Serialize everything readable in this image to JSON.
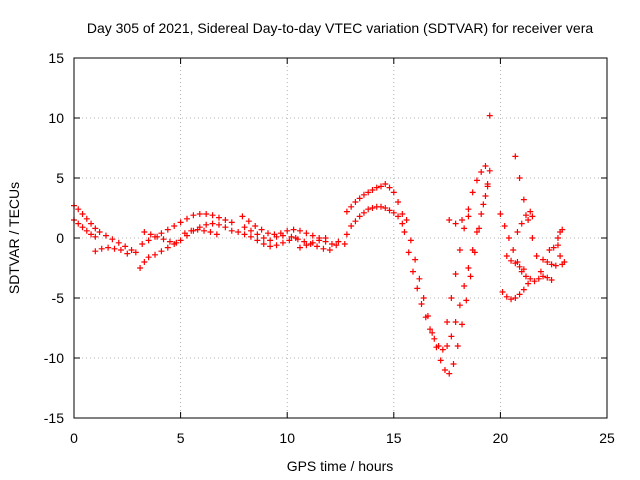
{
  "chart_data": {
    "type": "scatter",
    "title": "Day 305 of 2021, Sidereal Day-to-day VTEC variation (SDTVAR) for receiver vera",
    "xlabel": "GPS time / hours",
    "ylabel": "SDTVAR / TECUs",
    "xlim": [
      0,
      25
    ],
    "ylim": [
      -15,
      15
    ],
    "xticks": [
      "0",
      "5",
      "10",
      "15",
      "20",
      "25"
    ],
    "yticks": [
      "15",
      "10",
      "5",
      "0",
      "-5",
      "-10",
      "-15"
    ],
    "grid": true,
    "marker": "plus",
    "color": "#ff0000",
    "series": [
      {
        "points": [
          [
            0.0,
            2.7
          ],
          [
            0.2,
            2.4
          ],
          [
            0.4,
            2.0
          ],
          [
            0.6,
            1.6
          ],
          [
            0.8,
            1.2
          ],
          [
            1.0,
            0.8
          ],
          [
            1.2,
            0.5
          ],
          [
            1.5,
            0.2
          ],
          [
            1.8,
            -0.1
          ],
          [
            2.1,
            -0.4
          ],
          [
            2.4,
            -0.7
          ],
          [
            2.7,
            -1.0
          ],
          [
            2.9,
            -1.2
          ],
          [
            0.0,
            1.5
          ],
          [
            0.2,
            1.2
          ],
          [
            0.4,
            0.9
          ],
          [
            0.6,
            0.6
          ],
          [
            0.8,
            0.3
          ],
          [
            1.0,
            0.1
          ],
          [
            1.0,
            -1.1
          ],
          [
            1.3,
            -0.9
          ],
          [
            1.6,
            -0.8
          ],
          [
            1.9,
            -0.9
          ],
          [
            2.2,
            -1.0
          ],
          [
            2.5,
            -1.3
          ],
          [
            3.1,
            -2.5
          ],
          [
            3.3,
            -2.0
          ],
          [
            3.5,
            -1.6
          ],
          [
            3.8,
            -1.4
          ],
          [
            4.1,
            -1.1
          ],
          [
            4.4,
            -0.8
          ],
          [
            4.7,
            -0.5
          ],
          [
            5.0,
            -0.2
          ],
          [
            5.3,
            0.2
          ],
          [
            5.6,
            0.6
          ],
          [
            5.9,
            0.9
          ],
          [
            6.2,
            1.1
          ],
          [
            6.5,
            1.2
          ],
          [
            6.8,
            1.1
          ],
          [
            7.1,
            0.9
          ],
          [
            3.2,
            -0.5
          ],
          [
            3.5,
            -0.2
          ],
          [
            3.8,
            0.1
          ],
          [
            4.1,
            0.4
          ],
          [
            4.4,
            0.7
          ],
          [
            4.7,
            1.0
          ],
          [
            5.0,
            1.3
          ],
          [
            5.3,
            1.6
          ],
          [
            5.6,
            1.9
          ],
          [
            5.9,
            2.0
          ],
          [
            6.2,
            2.0
          ],
          [
            6.5,
            1.9
          ],
          [
            6.8,
            1.7
          ],
          [
            7.1,
            1.5
          ],
          [
            7.4,
            1.3
          ],
          [
            3.3,
            0.5
          ],
          [
            3.6,
            0.3
          ],
          [
            3.9,
            0.1
          ],
          [
            4.2,
            -0.1
          ],
          [
            4.5,
            -0.3
          ],
          [
            4.8,
            -0.4
          ],
          [
            5.2,
            0.4
          ],
          [
            5.5,
            0.6
          ],
          [
            5.8,
            0.7
          ],
          [
            6.1,
            0.6
          ],
          [
            6.4,
            0.5
          ],
          [
            6.7,
            0.3
          ],
          [
            7.4,
            0.6
          ],
          [
            7.7,
            0.5
          ],
          [
            8.0,
            0.3
          ],
          [
            8.3,
            0.1
          ],
          [
            8.6,
            -0.2
          ],
          [
            8.9,
            -0.5
          ],
          [
            9.2,
            -0.7
          ],
          [
            9.5,
            -0.6
          ],
          [
            9.8,
            -0.4
          ],
          [
            10.1,
            -0.2
          ],
          [
            10.4,
            0.0
          ],
          [
            7.9,
            1.8
          ],
          [
            8.2,
            1.4
          ],
          [
            8.5,
            1.0
          ],
          [
            8.8,
            0.7
          ],
          [
            9.1,
            0.4
          ],
          [
            9.4,
            0.3
          ],
          [
            9.7,
            0.4
          ],
          [
            10.0,
            0.6
          ],
          [
            10.3,
            0.7
          ],
          [
            10.6,
            0.6
          ],
          [
            10.9,
            0.4
          ],
          [
            11.2,
            0.2
          ],
          [
            11.5,
            0.0
          ],
          [
            11.8,
            -0.3
          ],
          [
            12.1,
            -0.5
          ],
          [
            12.4,
            -0.3
          ],
          [
            8.0,
            0.9
          ],
          [
            8.3,
            0.6
          ],
          [
            8.6,
            0.3
          ],
          [
            8.9,
            0.0
          ],
          [
            9.2,
            -0.2
          ],
          [
            9.5,
            0.1
          ],
          [
            9.8,
            0.2
          ],
          [
            10.2,
            0.1
          ],
          [
            10.5,
            -0.1
          ],
          [
            10.8,
            -0.3
          ],
          [
            11.1,
            -0.5
          ],
          [
            11.4,
            -0.7
          ],
          [
            11.7,
            -0.9
          ],
          [
            12.0,
            -1.0
          ],
          [
            12.3,
            -0.6
          ],
          [
            10.6,
            -0.8
          ],
          [
            10.9,
            -0.6
          ],
          [
            11.2,
            -0.4
          ],
          [
            11.5,
            -0.2
          ],
          [
            11.8,
            0.0
          ],
          [
            12.7,
            -0.5
          ],
          [
            12.8,
            0.3
          ],
          [
            13.0,
            1.0
          ],
          [
            13.2,
            1.4
          ],
          [
            13.4,
            1.8
          ],
          [
            13.6,
            2.1
          ],
          [
            13.8,
            2.4
          ],
          [
            14.0,
            2.5
          ],
          [
            14.2,
            2.6
          ],
          [
            14.4,
            2.6
          ],
          [
            14.6,
            2.5
          ],
          [
            14.8,
            2.3
          ],
          [
            15.0,
            2.1
          ],
          [
            15.2,
            1.8
          ],
          [
            15.4,
            1.2
          ],
          [
            12.8,
            2.2
          ],
          [
            13.0,
            2.6
          ],
          [
            13.2,
            3.0
          ],
          [
            13.4,
            3.3
          ],
          [
            13.6,
            3.6
          ],
          [
            13.8,
            3.8
          ],
          [
            14.0,
            4.0
          ],
          [
            14.2,
            4.2
          ],
          [
            14.4,
            4.3
          ],
          [
            14.6,
            4.5
          ],
          [
            14.8,
            4.2
          ],
          [
            15.0,
            3.8
          ],
          [
            15.2,
            3.0
          ],
          [
            15.4,
            2.0
          ],
          [
            15.5,
            0.5
          ],
          [
            15.7,
            -1.2
          ],
          [
            15.9,
            -2.8
          ],
          [
            16.1,
            -4.2
          ],
          [
            16.3,
            -5.5
          ],
          [
            16.5,
            -6.6
          ],
          [
            16.7,
            -7.6
          ],
          [
            16.9,
            -8.4
          ],
          [
            17.1,
            -9.0
          ],
          [
            17.3,
            -9.3
          ],
          [
            17.5,
            -9.0
          ],
          [
            17.7,
            -8.2
          ],
          [
            17.9,
            -7.0
          ],
          [
            18.1,
            -5.6
          ],
          [
            18.3,
            -4.0
          ],
          [
            18.5,
            -2.5
          ],
          [
            18.7,
            -1.0
          ],
          [
            18.9,
            0.5
          ],
          [
            19.1,
            2.0
          ],
          [
            19.3,
            3.5
          ],
          [
            19.4,
            4.5
          ],
          [
            15.6,
            1.5
          ],
          [
            15.8,
            -0.2
          ],
          [
            16.0,
            -1.8
          ],
          [
            16.2,
            -3.4
          ],
          [
            16.4,
            -5.0
          ],
          [
            16.6,
            -6.5
          ],
          [
            16.8,
            -7.9
          ],
          [
            17.0,
            -9.1
          ],
          [
            17.2,
            -10.2
          ],
          [
            17.4,
            -11.0
          ],
          [
            17.6,
            -11.3
          ],
          [
            17.8,
            -10.5
          ],
          [
            18.0,
            -9.0
          ],
          [
            18.2,
            -7.2
          ],
          [
            18.4,
            -5.2
          ],
          [
            18.6,
            -3.2
          ],
          [
            18.8,
            -1.2
          ],
          [
            19.0,
            0.8
          ],
          [
            19.2,
            2.8
          ],
          [
            19.4,
            4.3
          ],
          [
            17.5,
            -7.0
          ],
          [
            17.7,
            -5.0
          ],
          [
            17.9,
            -3.0
          ],
          [
            18.1,
            -1.0
          ],
          [
            18.3,
            0.8
          ],
          [
            18.5,
            2.4
          ],
          [
            18.7,
            3.8
          ],
          [
            18.9,
            4.8
          ],
          [
            19.1,
            5.5
          ],
          [
            19.3,
            6.0
          ],
          [
            19.5,
            5.6
          ],
          [
            17.6,
            1.5
          ],
          [
            17.9,
            1.2
          ],
          [
            18.2,
            1.5
          ],
          [
            18.5,
            1.8
          ],
          [
            19.5,
            10.2
          ],
          [
            20.0,
            2.0
          ],
          [
            20.2,
            1.0
          ],
          [
            20.4,
            0.0
          ],
          [
            20.6,
            -1.0
          ],
          [
            20.8,
            -2.0
          ],
          [
            21.0,
            -2.8
          ],
          [
            21.2,
            -3.2
          ],
          [
            21.4,
            -3.4
          ],
          [
            21.6,
            -3.6
          ],
          [
            21.8,
            -3.4
          ],
          [
            22.0,
            -3.2
          ],
          [
            22.2,
            -3.3
          ],
          [
            22.4,
            -3.5
          ],
          [
            20.1,
            -4.5
          ],
          [
            20.3,
            -4.9
          ],
          [
            20.5,
            -5.1
          ],
          [
            20.7,
            -5.0
          ],
          [
            20.9,
            -4.7
          ],
          [
            21.1,
            -4.3
          ],
          [
            21.3,
            -3.8
          ],
          [
            20.7,
            6.8
          ],
          [
            20.9,
            5.0
          ],
          [
            21.1,
            3.2
          ],
          [
            21.3,
            1.5
          ],
          [
            21.5,
            0.0
          ],
          [
            21.7,
            -1.5
          ],
          [
            21.9,
            -2.8
          ],
          [
            20.8,
            0.5
          ],
          [
            21.0,
            1.2
          ],
          [
            21.2,
            1.9
          ],
          [
            21.4,
            2.2
          ],
          [
            21.5,
            1.8
          ],
          [
            20.3,
            -1.5
          ],
          [
            20.5,
            -1.9
          ],
          [
            20.7,
            -2.1
          ],
          [
            20.9,
            -2.4
          ],
          [
            21.1,
            -2.6
          ],
          [
            22.0,
            -1.8
          ],
          [
            22.2,
            -2.0
          ],
          [
            22.4,
            -2.2
          ],
          [
            22.6,
            -2.3
          ],
          [
            22.3,
            -1.0
          ],
          [
            22.5,
            -0.8
          ],
          [
            22.7,
            -0.6
          ],
          [
            22.7,
            0.0
          ],
          [
            22.8,
            0.5
          ],
          [
            22.9,
            0.7
          ],
          [
            22.8,
            -1.5
          ],
          [
            22.9,
            -2.2
          ],
          [
            23.0,
            -2.0
          ]
        ]
      }
    ]
  }
}
